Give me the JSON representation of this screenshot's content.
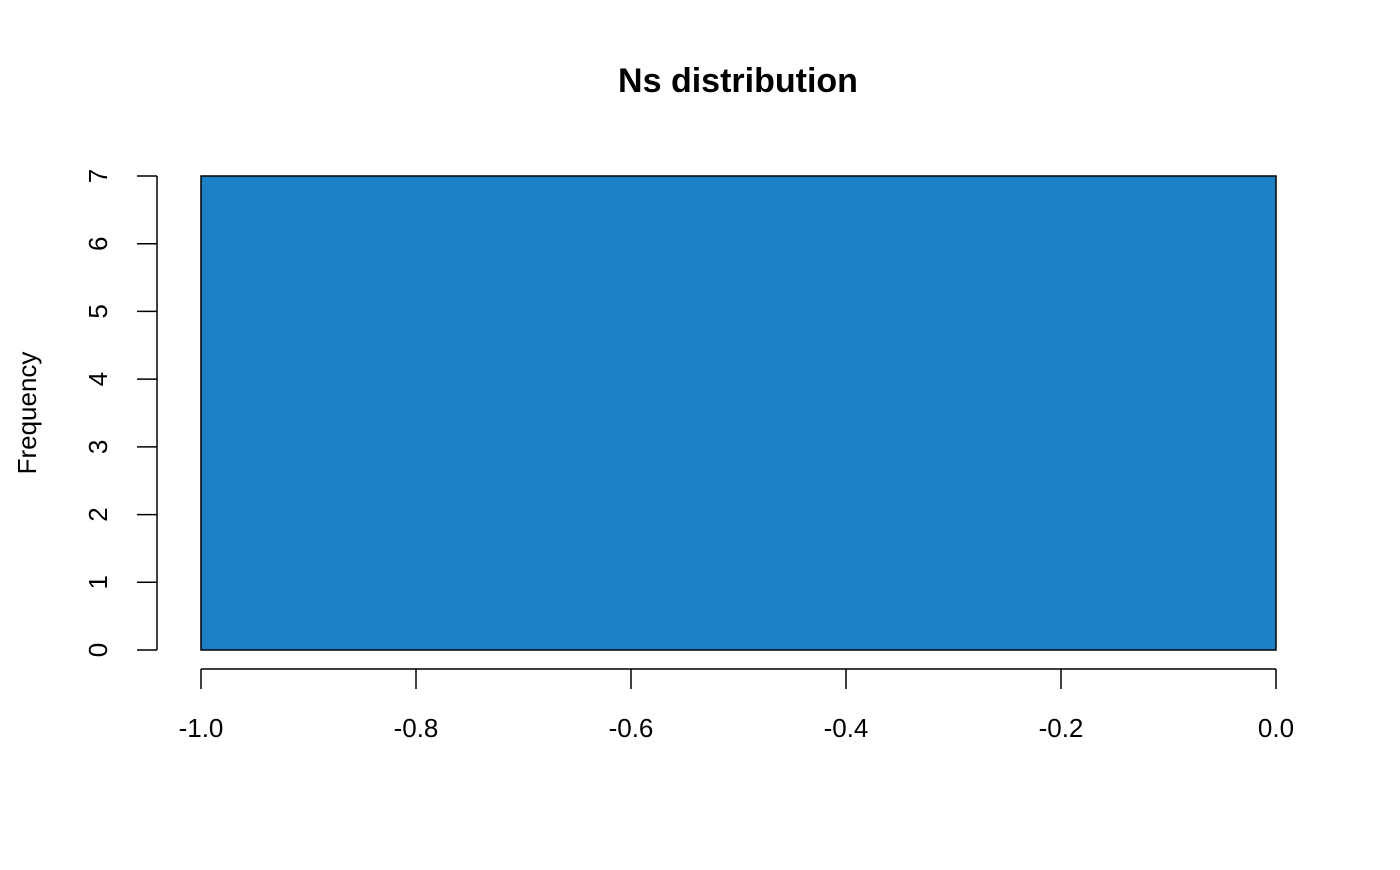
{
  "chart_data": {
    "type": "bar",
    "title": "Ns distribution",
    "xlabel": "",
    "ylabel": "Frequency",
    "bins": [
      {
        "from": -1.0,
        "to": 0.0,
        "count": 7
      }
    ],
    "xlim": [
      -1.0,
      0.0
    ],
    "ylim": [
      0,
      7
    ],
    "xticks": [
      "-1.0",
      "-0.8",
      "-0.6",
      "-0.4",
      "-0.2",
      "0.0"
    ],
    "xtick_values": [
      -1.0,
      -0.8,
      -0.6,
      -0.4,
      -0.2,
      0.0
    ],
    "yticks": [
      "0",
      "1",
      "2",
      "3",
      "4",
      "5",
      "6",
      "7"
    ],
    "ytick_values": [
      0,
      1,
      2,
      3,
      4,
      5,
      6,
      7
    ],
    "grid": false,
    "bar_color": "#1C80C4"
  }
}
